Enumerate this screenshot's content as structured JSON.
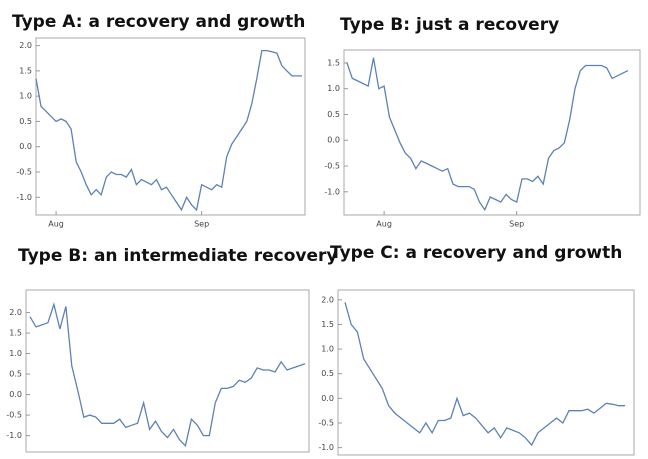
{
  "chart_data": [
    {
      "type": "line",
      "title": "Type A: a recovery and growth",
      "x": [
        0,
        1,
        2,
        3,
        4,
        5,
        6,
        7,
        8,
        9,
        10,
        11,
        12,
        13,
        14,
        15,
        16,
        17,
        18,
        19,
        20,
        21,
        22,
        23,
        24,
        25,
        26,
        27,
        28,
        29,
        30,
        31,
        32,
        33,
        34,
        35,
        36,
        37,
        38,
        39,
        40,
        41,
        42,
        43,
        44,
        45,
        46,
        47,
        48,
        49,
        50,
        51,
        52,
        53
      ],
      "series": [
        {
          "color": "#5e81b5",
          "values": [
            1.35,
            0.8,
            0.7,
            0.6,
            0.5,
            0.55,
            0.5,
            0.35,
            -0.3,
            -0.5,
            -0.75,
            -0.95,
            -0.85,
            -0.95,
            -0.6,
            -0.5,
            -0.55,
            -0.55,
            -0.6,
            -0.45,
            -0.75,
            -0.65,
            -0.7,
            -0.75,
            -0.65,
            -0.85,
            -0.8,
            -0.95,
            -1.1,
            -1.25,
            -1.0,
            -1.15,
            -1.25,
            -0.75,
            -0.8,
            -0.85,
            -0.75,
            -0.8,
            -0.2,
            0.05,
            0.2,
            0.35,
            0.5,
            0.85,
            1.35,
            1.9,
            1.9,
            1.88,
            1.85,
            1.6,
            1.5,
            1.4,
            1.4,
            1.4
          ]
        }
      ],
      "xlim": [
        0,
        53
      ],
      "xticks": [
        {
          "value": 4,
          "label": "Aug"
        },
        {
          "value": 33,
          "label": "Sep"
        }
      ],
      "ylim": [
        -1.35,
        2.15
      ],
      "yticks": [
        {
          "value": 2,
          "label": "2.0"
        },
        1.5,
        {
          "value": 1,
          "label": "1.0"
        },
        0.5,
        {
          "value": 0,
          "label": "0.0"
        },
        -0.5,
        {
          "value": -1,
          "label": "-1.0"
        }
      ]
    },
    {
      "type": "line",
      "title": "Type B: just a recovery",
      "x": [
        0,
        1,
        2,
        3,
        4,
        5,
        6,
        7,
        8,
        9,
        10,
        11,
        12,
        13,
        14,
        15,
        16,
        17,
        18,
        19,
        20,
        21,
        22,
        23,
        24,
        25,
        26,
        27,
        28,
        29,
        30,
        31,
        32,
        33,
        34,
        35,
        36,
        37,
        38,
        39,
        40,
        41,
        42,
        43,
        44,
        45,
        46,
        47,
        48,
        49,
        50,
        51,
        52,
        53
      ],
      "series": [
        {
          "color": "#5e81b5",
          "values": [
            1.5,
            1.2,
            1.15,
            1.1,
            1.05,
            1.6,
            1.0,
            1.05,
            0.45,
            0.2,
            -0.05,
            -0.25,
            -0.35,
            -0.55,
            -0.4,
            -0.45,
            -0.5,
            -0.55,
            -0.6,
            -0.55,
            -0.85,
            -0.9,
            -0.9,
            -0.9,
            -0.95,
            -1.2,
            -1.35,
            -1.1,
            -1.15,
            -1.2,
            -1.05,
            -1.15,
            -1.2,
            -0.75,
            -0.75,
            -0.8,
            -0.7,
            -0.85,
            -0.35,
            -0.2,
            -0.15,
            -0.05,
            0.4,
            1.0,
            1.35,
            1.45,
            1.45,
            1.45,
            1.45,
            1.4,
            1.2,
            1.25,
            1.3,
            1.35
          ]
        }
      ],
      "xlim": [
        0,
        53
      ],
      "xticks": [
        {
          "value": 7,
          "label": "Aug"
        },
        {
          "value": 32,
          "label": "Sep"
        }
      ],
      "ylim": [
        -1.45,
        1.75
      ],
      "yticks": [
        1.5,
        {
          "value": 1,
          "label": "1.0"
        },
        0.5,
        {
          "value": 0,
          "label": "0.0"
        },
        -0.5,
        {
          "value": -1,
          "label": "-1.0"
        }
      ]
    },
    {
      "type": "line",
      "title": "Type B: an intermediate recovery",
      "x": [
        0,
        1,
        2,
        3,
        4,
        5,
        6,
        7,
        8,
        9,
        10,
        11,
        12,
        13,
        14,
        15,
        16,
        17,
        18,
        19,
        20,
        21,
        22,
        23,
        24,
        25,
        26,
        27,
        28,
        29,
        30,
        31,
        32,
        33,
        34,
        35,
        36,
        37,
        38,
        39,
        40,
        41,
        42,
        43,
        44,
        45,
        46
      ],
      "series": [
        {
          "color": "#5e81b5",
          "values": [
            1.9,
            1.65,
            1.7,
            1.75,
            2.2,
            1.6,
            2.15,
            0.7,
            0.1,
            -0.55,
            -0.5,
            -0.55,
            -0.7,
            -0.7,
            -0.7,
            -0.6,
            -0.8,
            -0.75,
            -0.7,
            -0.2,
            -0.85,
            -0.65,
            -0.9,
            -1.05,
            -0.85,
            -1.1,
            -1.25,
            -0.6,
            -0.75,
            -1.0,
            -1.0,
            -0.2,
            0.15,
            0.15,
            0.2,
            0.35,
            0.3,
            0.4,
            0.65,
            0.6,
            0.6,
            0.55,
            0.8,
            0.6,
            0.65,
            0.7,
            0.75
          ]
        }
      ],
      "xlim": [
        0,
        46
      ],
      "ylim": [
        -1.4,
        2.55
      ],
      "yticks": [
        {
          "value": 2,
          "label": "2.0"
        },
        1.5,
        {
          "value": 1,
          "label": "1.0"
        },
        0.5,
        {
          "value": 0,
          "label": "0.0"
        },
        -0.5,
        {
          "value": -1,
          "label": "-1.0"
        }
      ]
    },
    {
      "type": "line",
      "title": "Type C: a recovery and growth",
      "x": [
        0,
        1,
        2,
        3,
        4,
        5,
        6,
        7,
        8,
        9,
        10,
        11,
        12,
        13,
        14,
        15,
        16,
        17,
        18,
        19,
        20,
        21,
        22,
        23,
        24,
        25,
        26,
        27,
        28,
        29,
        30,
        31,
        32,
        33,
        34,
        35,
        36,
        37,
        38,
        39,
        40,
        41,
        42,
        43,
        44,
        45
      ],
      "series": [
        {
          "color": "#5e81b5",
          "values": [
            1.95,
            1.5,
            1.35,
            0.8,
            0.6,
            0.4,
            0.2,
            -0.15,
            -0.3,
            -0.4,
            -0.5,
            -0.6,
            -0.7,
            -0.5,
            -0.7,
            -0.45,
            -0.45,
            -0.4,
            0.0,
            -0.35,
            -0.3,
            -0.4,
            -0.55,
            -0.7,
            -0.6,
            -0.8,
            -0.6,
            -0.65,
            -0.7,
            -0.8,
            -0.95,
            -0.7,
            -0.6,
            -0.5,
            -0.4,
            -0.5,
            -0.25,
            -0.25,
            -0.25,
            -0.22,
            -0.3,
            -0.2,
            -0.1,
            -0.12,
            -0.15,
            -0.15
          ]
        }
      ],
      "xlim": [
        0,
        45
      ],
      "ylim": [
        -1.15,
        2.2
      ],
      "yticks": [
        {
          "value": 2,
          "label": "2.0"
        },
        1.5,
        {
          "value": 1,
          "label": "1.0"
        },
        0.5,
        {
          "value": 0,
          "label": "0.0"
        },
        -0.5,
        {
          "value": -1,
          "label": "-1.0"
        }
      ]
    }
  ]
}
